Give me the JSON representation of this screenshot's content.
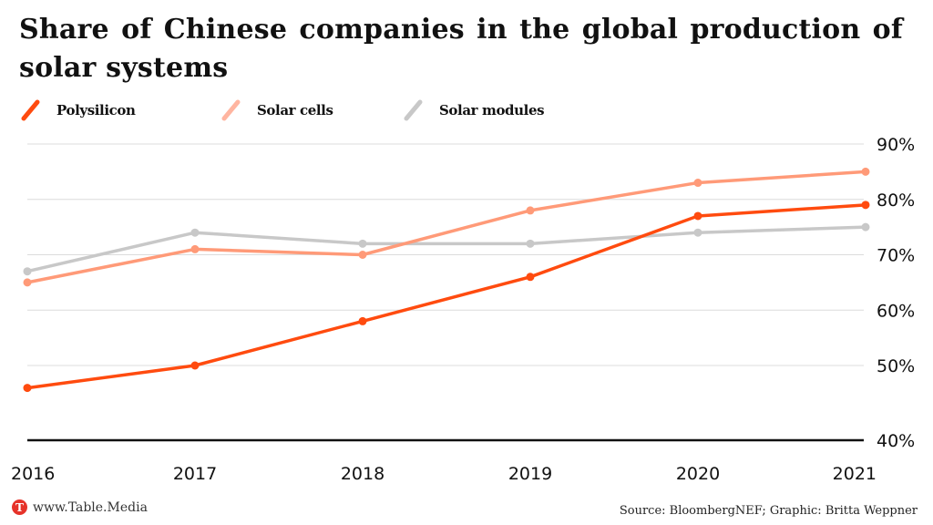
{
  "chart_data": {
    "type": "line",
    "title": "Share of Chinese companies in the global production of solar systems",
    "xlabel": "",
    "ylabel": "",
    "x": [
      "2016",
      "2017",
      "2018",
      "2019",
      "2020",
      "2021"
    ],
    "series": [
      {
        "name": "Polysilicon",
        "color": "#ff4b0f",
        "values": [
          47,
          50,
          58,
          66,
          77,
          79
        ]
      },
      {
        "name": "Solar cells",
        "color": "#ff9a78",
        "values": [
          65,
          71,
          70,
          78,
          83,
          85
        ]
      },
      {
        "name": "Solar modules",
        "color": "#c8c8c8",
        "values": [
          67,
          74,
          72,
          72,
          74,
          75
        ]
      }
    ],
    "yticks": [
      40,
      50,
      60,
      70,
      80,
      90
    ],
    "ytick_labels": [
      "40%",
      "50%",
      "60%",
      "70%",
      "80%",
      "90%"
    ],
    "ylim": [
      40,
      90
    ],
    "grid": true,
    "legend_position": "top-left",
    "axis_side": "right"
  },
  "footer": {
    "logo_letter": "T",
    "site": "www.Table.Media",
    "source": "Source: BloombergNEF; Graphic: Britta Weppner"
  }
}
